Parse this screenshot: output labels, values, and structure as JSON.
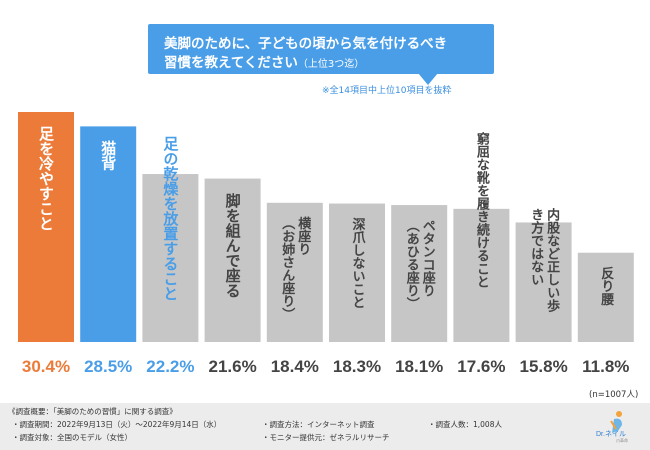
{
  "title": {
    "line1": "美脚のために、子どもの頃から気を付けるべき",
    "line2": "習慣を教えてください",
    "line2_suffix": "（上位3つ迄）"
  },
  "note": "※全14項目中上位10項目を抜粋",
  "colors": {
    "rank1": "#ec7b3a",
    "rank2": "#4a9ee8",
    "rank3_text": "#4a9ee8",
    "rank3_fill": "#4a9ee8",
    "others": "#c6c6c6",
    "dark_text": "#444444",
    "banner": "#4a9ee8"
  },
  "chart_data": {
    "type": "bar",
    "categories": [
      "足を冷やすこと",
      "猫背",
      "足の乾燥を放置すること",
      "脚を組んで座る",
      "横座り（お姉さん座り）",
      "深爪しないこと",
      "ペタンコ座り（あひる座り）",
      "窮屈な靴を履き続けること",
      "内股など正しい歩き方ではない",
      "反り腰"
    ],
    "values": [
      30.4,
      28.5,
      22.2,
      21.6,
      18.4,
      18.3,
      18.1,
      17.6,
      15.8,
      11.8
    ],
    "value_labels": [
      "30.4%",
      "28.5%",
      "22.2%",
      "21.6%",
      "18.4%",
      "18.3%",
      "18.1%",
      "17.6%",
      "15.8%",
      "11.8%"
    ],
    "unit": "%",
    "sample_size": "(n=1007人)",
    "ylim": [
      0,
      30.4
    ],
    "grid": false,
    "legend": "none"
  },
  "footer": {
    "survey_title": "《調査概要：「美脚のための習慣」に関する調査》",
    "period": "・調査期間：2022年9月13日（火）～2022年9月14日（水）",
    "target": "・調査対象：全国のモデル（女性）",
    "method": "・調査方法：インターネット調査",
    "provider": "・モニター提供元：ゼネラルリサーチ",
    "count": "・調査人数：1,008人"
  },
  "logo": {
    "text": "Dr.ネイル",
    "sub": "爪革命",
    "icon": "nail-figure-icon"
  }
}
